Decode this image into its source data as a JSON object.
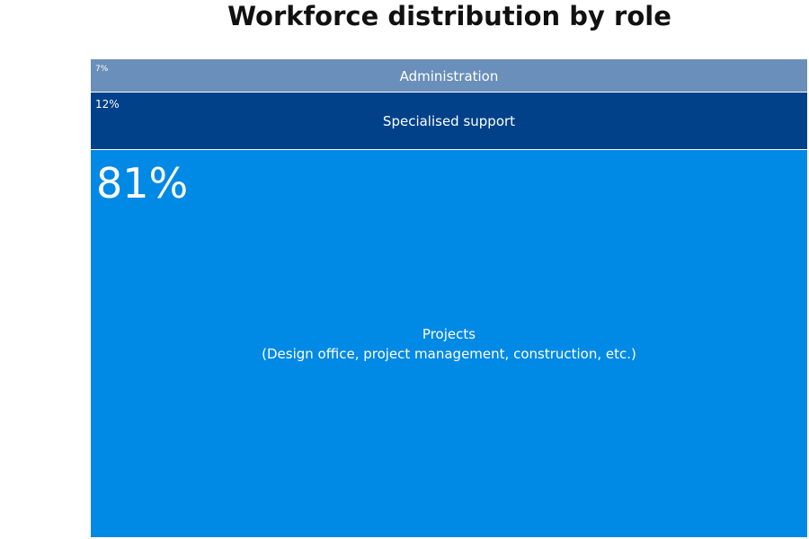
{
  "title": "Workforce distribution by role",
  "chart_data": {
    "type": "stacked-bar",
    "orientation": "vertical-stack",
    "title": "Workforce distribution by role",
    "segments": [
      {
        "label_lines": [
          "Administration"
        ],
        "percent_label": "7%",
        "value": 7,
        "color": "#6a8fba"
      },
      {
        "label_lines": [
          "Specialised support"
        ],
        "percent_label": "12%",
        "value": 12,
        "color": "#004189"
      },
      {
        "label_lines": [
          "Projects",
          "(Design office, project management, construction, etc.)"
        ],
        "percent_label": "81%",
        "value": 81,
        "color": "#0089e5"
      }
    ]
  }
}
